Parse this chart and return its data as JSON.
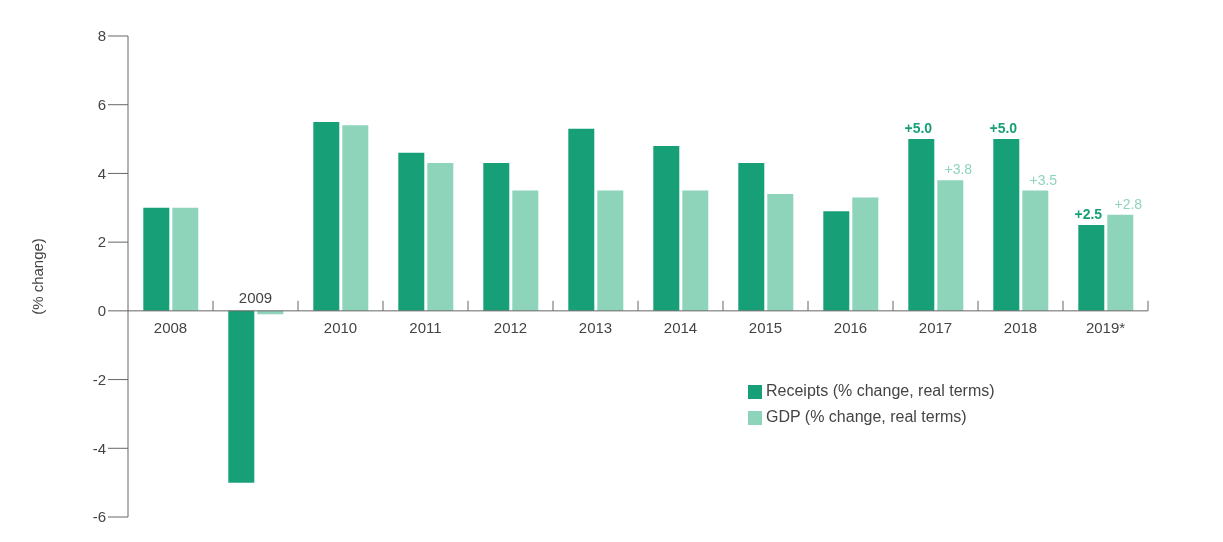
{
  "chart_data": {
    "type": "bar",
    "ylabel": "(% change)",
    "categories": [
      "2008",
      "2009",
      "2010",
      "2011",
      "2012",
      "2013",
      "2014",
      "2015",
      "2016",
      "2017",
      "2018",
      "2019*"
    ],
    "series": [
      {
        "name": "Receipts (% change, real terms)",
        "color": "#17a077",
        "values": [
          3.0,
          -5.0,
          5.5,
          4.6,
          4.3,
          5.3,
          4.8,
          4.3,
          2.9,
          5.0,
          5.0,
          2.5
        ],
        "value_labels": [
          null,
          null,
          null,
          null,
          null,
          null,
          null,
          null,
          null,
          "+5.0",
          "+5.0",
          "+2.5"
        ]
      },
      {
        "name": "GDP (% change, real terms)",
        "color": "#8ed4bb",
        "values": [
          3.0,
          -0.1,
          5.4,
          4.3,
          3.5,
          3.5,
          3.5,
          3.4,
          3.3,
          3.8,
          3.5,
          2.8
        ],
        "value_labels": [
          null,
          null,
          null,
          null,
          null,
          null,
          null,
          null,
          null,
          "+3.8",
          "+3.5",
          "+2.8"
        ]
      }
    ],
    "ylim": [
      -6,
      8
    ],
    "yticks": [
      -6,
      -4,
      -2,
      0,
      2,
      4,
      6,
      8
    ],
    "grid": false,
    "legend": "bottom right"
  }
}
